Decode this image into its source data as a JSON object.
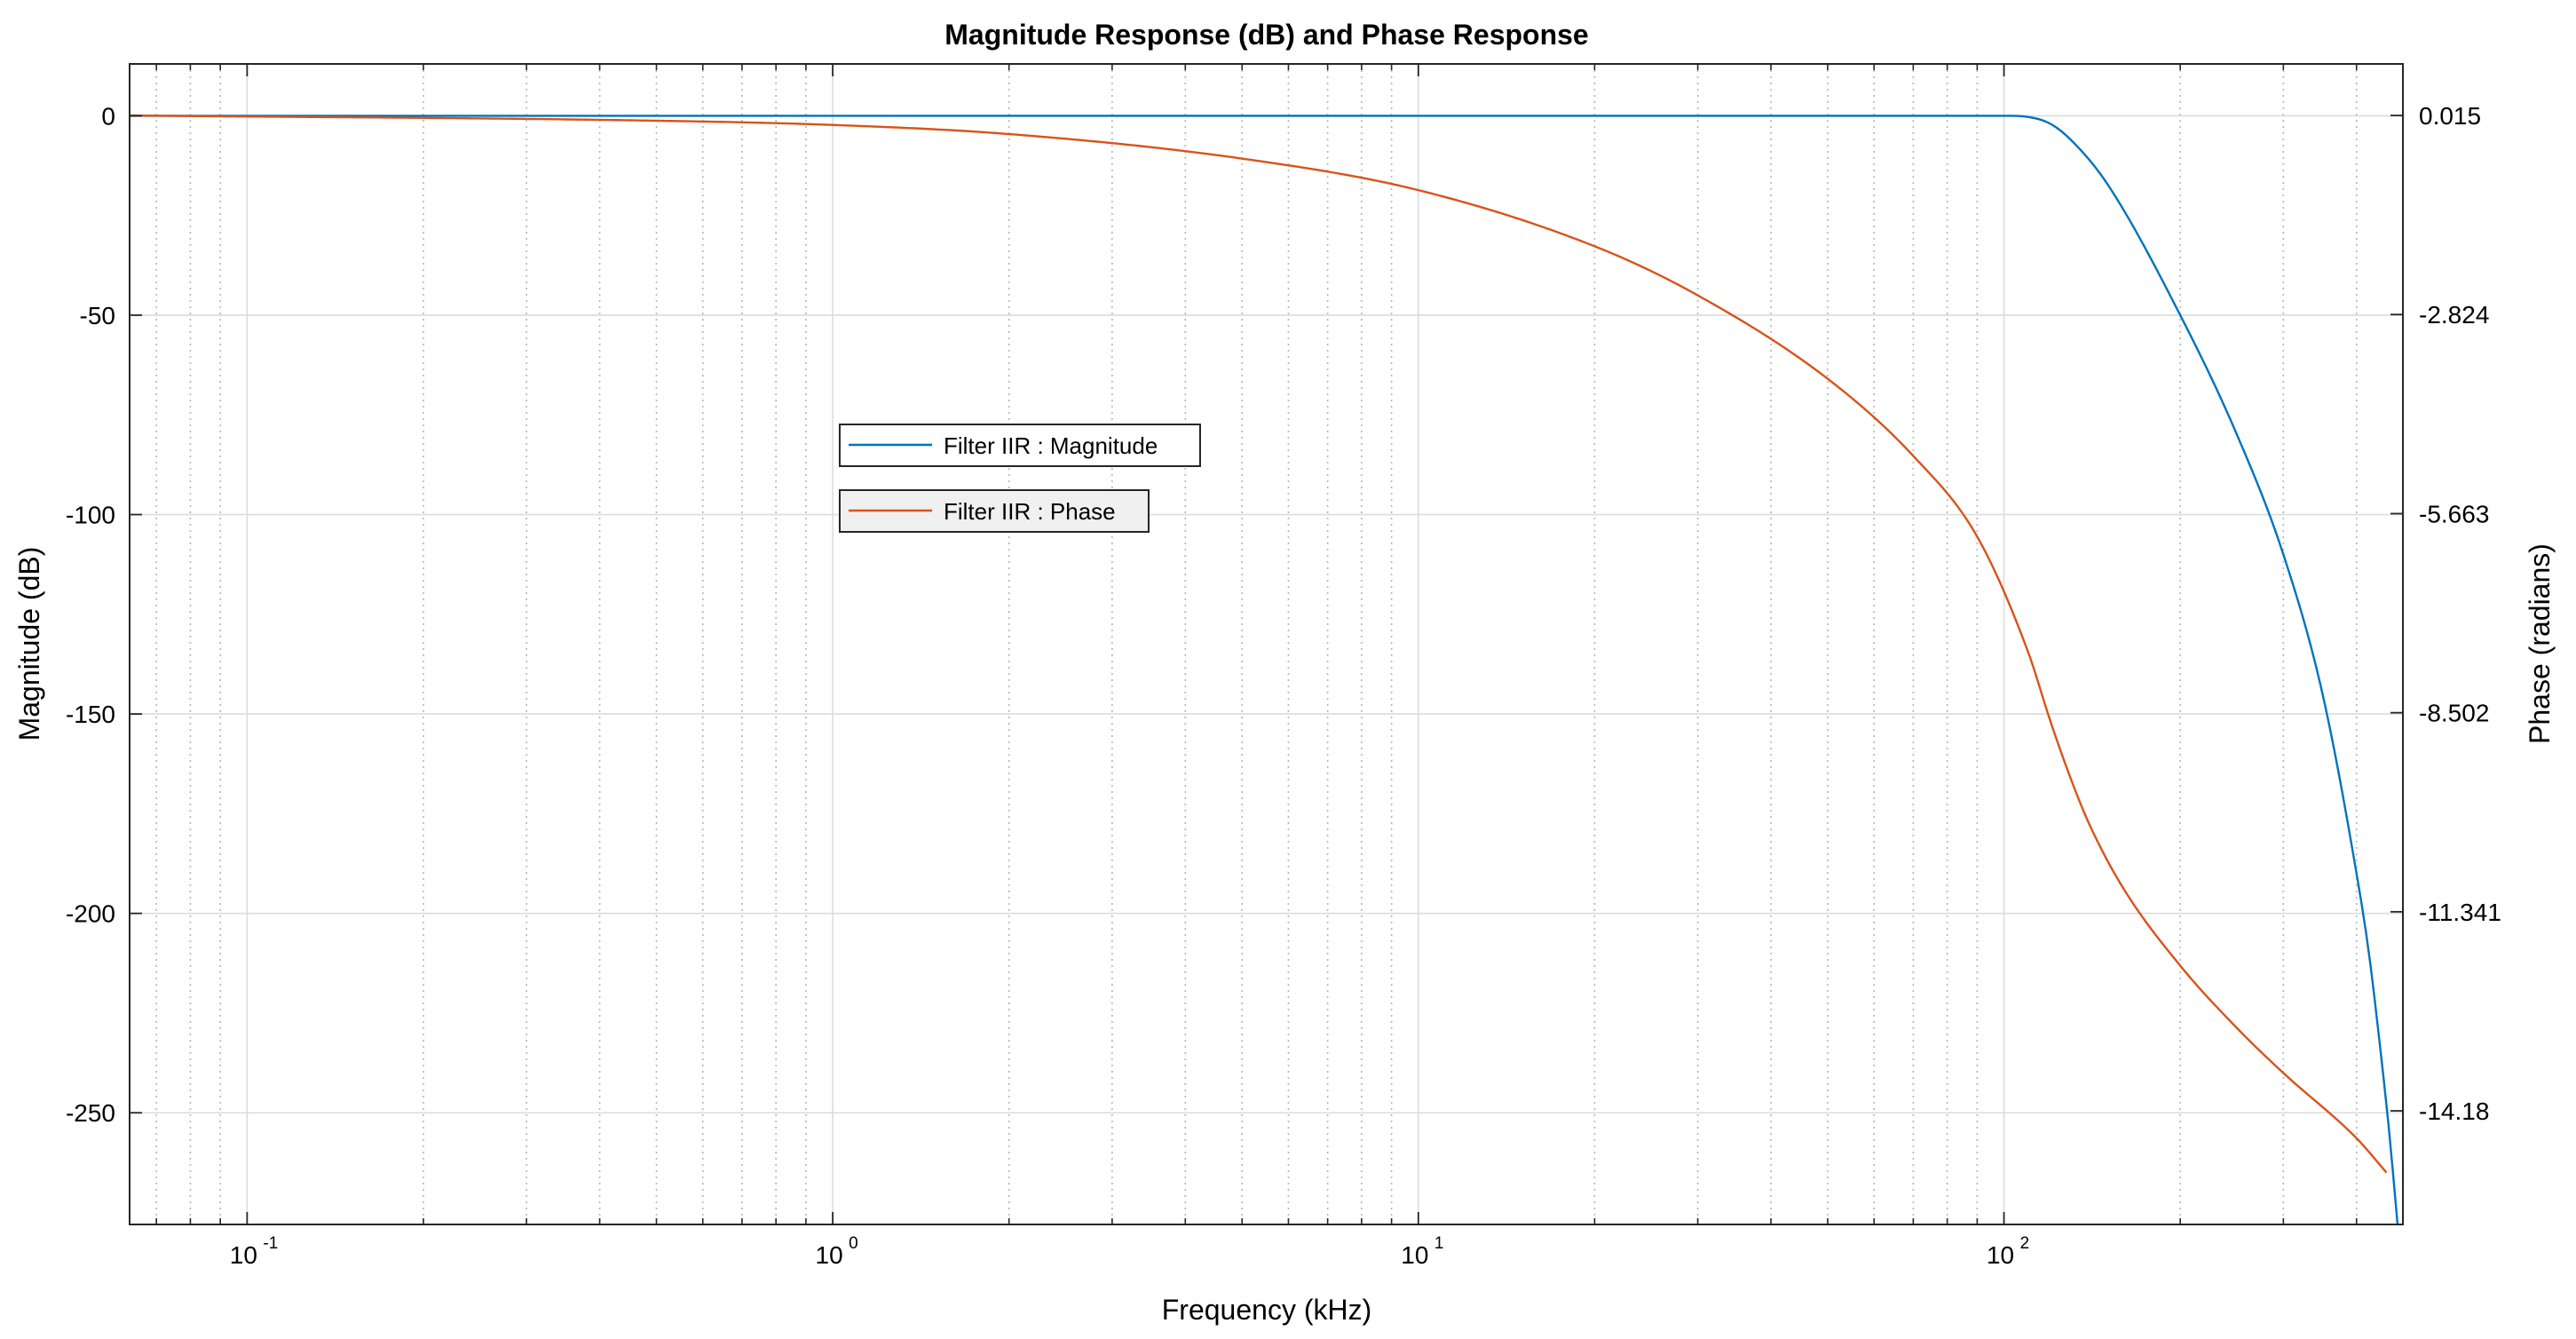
{
  "chart_data": {
    "type": "line",
    "title": "Magnitude Response (dB) and Phase Response",
    "xlabel": "Frequency (kHz)",
    "ylabel_left": "Magnitude (dB)",
    "ylabel_right": "Phase (radians)",
    "x_scale": "log",
    "xlim": [
      0.063,
      480
    ],
    "ylim_left": [
      -278,
      13
    ],
    "ylim_right": [
      -15.8,
      0.75
    ],
    "x_ticks": [
      {
        "base": "10",
        "exp": "-1",
        "value": 0.1
      },
      {
        "base": "10",
        "exp": "0",
        "value": 1
      },
      {
        "base": "10",
        "exp": "1",
        "value": 10
      },
      {
        "base": "10",
        "exp": "2",
        "value": 100
      }
    ],
    "y_left_ticks": [
      {
        "label": "0",
        "value": 0
      },
      {
        "label": "-50",
        "value": -50
      },
      {
        "label": "-100",
        "value": -100
      },
      {
        "label": "-150",
        "value": -150
      },
      {
        "label": "-200",
        "value": -200
      },
      {
        "label": "-250",
        "value": -250
      }
    ],
    "y_right_ticks": [
      {
        "label": "0.015",
        "value": 0.015
      },
      {
        "label": "-2.824",
        "value": -2.824
      },
      {
        "label": "-5.663",
        "value": -5.663
      },
      {
        "label": "-8.502",
        "value": -8.502
      },
      {
        "label": "-11.341",
        "value": -11.341
      },
      {
        "label": "-14.18",
        "value": -14.18
      }
    ],
    "grid": true,
    "legend": {
      "position": "center-left",
      "entries": [
        "Filter IIR : Magnitude",
        "Filter IIR : Phase"
      ]
    },
    "series": [
      {
        "name": "Filter IIR : Magnitude",
        "axis": "left",
        "color": "#0072BD",
        "x": [
          0.063,
          1,
          10,
          50,
          100,
          110,
          120,
          130,
          150,
          200,
          250,
          300,
          350,
          400,
          420,
          440,
          455,
          470
        ],
        "y": [
          0,
          0,
          0,
          0,
          0,
          -0.3,
          -2,
          -6,
          -17,
          -50,
          -80,
          -110,
          -145,
          -190,
          -210,
          -235,
          -255,
          -278
        ]
      },
      {
        "name": "Filter IIR : Phase",
        "axis": "right",
        "color": "#D95319",
        "x": [
          0.063,
          0.5,
          1,
          2,
          5,
          10,
          20,
          30,
          50,
          70,
          90,
          110,
          120,
          130,
          140,
          160,
          200,
          250,
          300,
          400,
          450
        ],
        "y": [
          0.015,
          -0.06,
          -0.12,
          -0.25,
          -0.6,
          -1.05,
          -1.85,
          -2.55,
          -3.74,
          -4.84,
          -5.99,
          -7.64,
          -8.62,
          -9.44,
          -10.1,
          -11.01,
          -12.11,
          -13.0,
          -13.64,
          -14.57,
          -15.06
        ]
      }
    ]
  }
}
